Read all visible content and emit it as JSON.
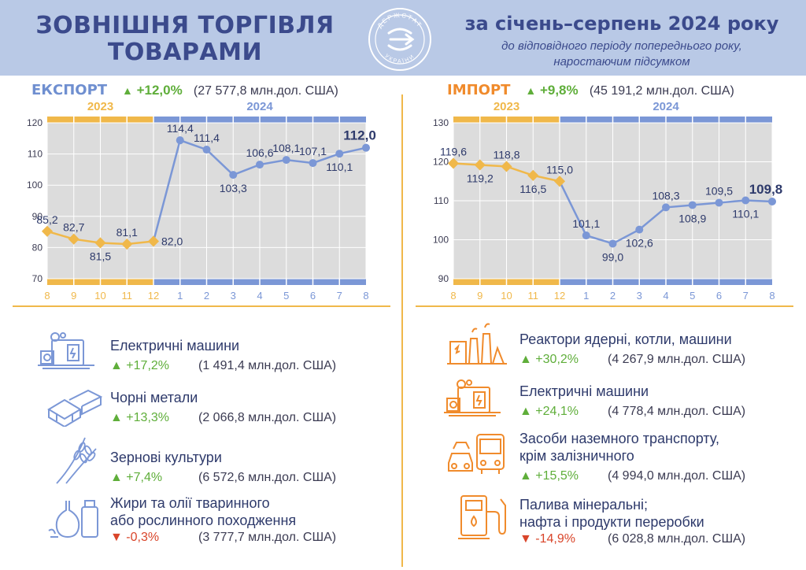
{
  "header": {
    "title_line1": "ЗОВНІШНЯ ТОРГІВЛЯ",
    "title_line2": "ТОВАРАМИ",
    "period": "за січень–серпень 2024 року",
    "sub_line1": "до відповідного періоду попереднього року,",
    "sub_line2": "наростаючим підсумком",
    "emblem_top": "ДЕРЖСТАТ",
    "emblem_bottom": "УКРАЇНИ"
  },
  "colors": {
    "orange": "#f0b84a",
    "blue": "#7b97d6",
    "up": "#5fae3a",
    "down": "#d9452a",
    "grid_bg": "#dcdcdc"
  },
  "export": {
    "name": "ЕКСПОРТ",
    "arrow": "▲",
    "change": "+12,0%",
    "amount": "(27 577,8 млн.дол. США)",
    "chart_data": {
      "type": "line",
      "year_labels": [
        "2023",
        "2024"
      ],
      "x": [
        "8",
        "9",
        "10",
        "11",
        "12",
        "1",
        "2",
        "3",
        "4",
        "5",
        "6",
        "7",
        "8"
      ],
      "values": [
        85.2,
        82.7,
        81.5,
        81.1,
        82.0,
        114.4,
        111.4,
        103.3,
        106.6,
        108.1,
        107.1,
        110.1,
        112.0
      ],
      "labels": [
        "85,2",
        "82,7",
        "81,5",
        "81,1",
        "82,0",
        "114,4",
        "111,4",
        "103,3",
        "106,6",
        "108,1",
        "107,1",
        "110,1",
        "112,0"
      ],
      "label_pos": [
        "above",
        "above",
        "below",
        "above",
        "right",
        "above",
        "above",
        "below",
        "above",
        "above",
        "above",
        "below",
        "above-bold"
      ],
      "ylim": [
        70,
        120
      ],
      "yticks": [
        70,
        80,
        90,
        100,
        110,
        120
      ],
      "split_index": 4,
      "grid": true
    }
  },
  "import": {
    "name": "ІМПОРТ",
    "arrow": "▲",
    "change": "+9,8%",
    "amount": "(45 191,2 млн.дол. США)",
    "chart_data": {
      "type": "line",
      "year_labels": [
        "2023",
        "2024"
      ],
      "x": [
        "8",
        "9",
        "10",
        "11",
        "12",
        "1",
        "2",
        "3",
        "4",
        "5",
        "6",
        "7",
        "8"
      ],
      "values": [
        119.6,
        119.2,
        118.8,
        116.5,
        115.0,
        101.1,
        99.0,
        102.6,
        108.3,
        108.9,
        109.5,
        110.1,
        109.8
      ],
      "labels": [
        "119,6",
        "119,2",
        "118,8",
        "116,5",
        "115,0",
        "101,1",
        "99,0",
        "102,6",
        "108,3",
        "108,9",
        "109,5",
        "110,1",
        "109,8"
      ],
      "label_pos": [
        "above",
        "below",
        "above",
        "below",
        "above",
        "above",
        "below",
        "below",
        "above",
        "below",
        "above",
        "below",
        "above-bold"
      ],
      "ylim": [
        90,
        130
      ],
      "yticks": [
        90,
        100,
        110,
        120,
        130
      ],
      "split_index": 4,
      "grid": true
    }
  },
  "export_items": [
    {
      "label": "Електричні машини",
      "arrow": "▲",
      "change": "+17,2%",
      "amount": "(1 491,4 млн.дол. США)",
      "dir": "up",
      "icon": "electric-machine-icon"
    },
    {
      "label": "Чорні метали",
      "arrow": "▲",
      "change": "+13,3%",
      "amount": "(2 066,8 млн.дол. США)",
      "dir": "up",
      "icon": "metal-beams-icon"
    },
    {
      "label": "Зернові культури",
      "arrow": "▲",
      "change": "+7,4%",
      "amount": "(6 572,6 млн.дол. США)",
      "dir": "up",
      "icon": "wheat-icon"
    },
    {
      "label": "Жири та олії тваринного",
      "label2": "або рослинного походження",
      "arrow": "▼",
      "change": "-0,3%",
      "amount": "(3 777,7 млн.дол. США)",
      "dir": "down",
      "icon": "oil-bottles-icon"
    }
  ],
  "import_items": [
    {
      "label": "Реактори ядерні, котли, машини",
      "arrow": "▲",
      "change": "+30,2%",
      "amount": "(4 267,9 млн.дол. США)",
      "dir": "up",
      "icon": "factory-reactor-icon"
    },
    {
      "label": "Електричні машини",
      "arrow": "▲",
      "change": "+24,1%",
      "amount": "(4 778,4 млн.дол. США)",
      "dir": "up",
      "icon": "electric-machine-icon"
    },
    {
      "label": "Засоби наземного транспорту,",
      "label2": "крім залізничного",
      "arrow": "▲",
      "change": "+15,5%",
      "amount": "(4 994,0 млн.дол. США)",
      "dir": "up",
      "icon": "bus-car-icon"
    },
    {
      "label": "Палива мінеральні;",
      "label2": "нафта і продукти переробки",
      "arrow": "▼",
      "change": "-14,9%",
      "amount": "(6 028,8 млн.дол. США)",
      "dir": "down",
      "icon": "fuel-pump-icon"
    }
  ]
}
